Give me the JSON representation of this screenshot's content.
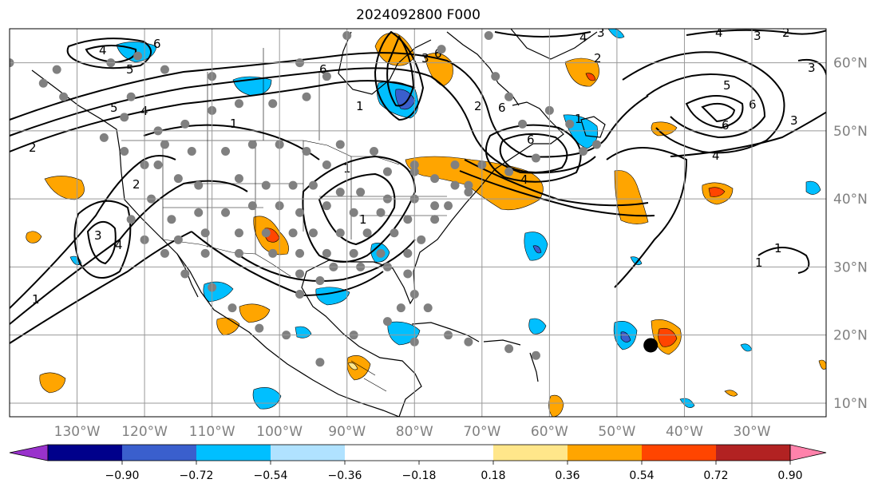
{
  "title": "2024092800 F000",
  "map": {
    "lon_range": [
      -140,
      -19
    ],
    "lat_range": [
      8,
      65
    ],
    "grid_on": true,
    "lon_ticks": [
      {
        "value": -130,
        "label": "130°W"
      },
      {
        "value": -120,
        "label": "120°W"
      },
      {
        "value": -110,
        "label": "110°W"
      },
      {
        "value": -100,
        "label": "100°W"
      },
      {
        "value": -90,
        "label": "90°W"
      },
      {
        "value": -80,
        "label": "80°W"
      },
      {
        "value": -70,
        "label": "70°W"
      },
      {
        "value": -60,
        "label": "60°W"
      },
      {
        "value": -50,
        "label": "50°W"
      },
      {
        "value": -40,
        "label": "40°W"
      },
      {
        "value": -30,
        "label": "30°W"
      }
    ],
    "lat_ticks": [
      {
        "value": 10,
        "label": "10°N"
      },
      {
        "value": 20,
        "label": "20°N"
      },
      {
        "value": 30,
        "label": "30°N"
      },
      {
        "value": 40,
        "label": "40°N"
      },
      {
        "value": 50,
        "label": "50°N"
      },
      {
        "value": 60,
        "label": "60°N"
      }
    ],
    "marker": {
      "lon": -45,
      "lat": 18.5,
      "color": "#000000"
    },
    "stations_color": "#808080",
    "stations": [
      [
        -140,
        60
      ],
      [
        -133,
        59
      ],
      [
        -135,
        57
      ],
      [
        -132,
        55
      ],
      [
        -125,
        60
      ],
      [
        -121,
        61
      ],
      [
        -117,
        59
      ],
      [
        -110,
        58
      ],
      [
        -122,
        55
      ],
      [
        -126,
        49
      ],
      [
        -123,
        47
      ],
      [
        -120,
        45
      ],
      [
        -117,
        48
      ],
      [
        -113,
        47
      ],
      [
        -108,
        47
      ],
      [
        -104,
        48
      ],
      [
        -100,
        48
      ],
      [
        -96,
        47
      ],
      [
        -93,
        45
      ],
      [
        -91,
        48
      ],
      [
        -86,
        47
      ],
      [
        -84,
        44
      ],
      [
        -80,
        44
      ],
      [
        -77,
        43
      ],
      [
        -74,
        42
      ],
      [
        -72,
        42
      ],
      [
        -123,
        52
      ],
      [
        -118,
        50
      ],
      [
        -114,
        51
      ],
      [
        -110,
        53
      ],
      [
        -106,
        54
      ],
      [
        -101,
        54
      ],
      [
        -96,
        55
      ],
      [
        -93,
        58
      ],
      [
        -97,
        60
      ],
      [
        -90,
        64
      ],
      [
        -76,
        62
      ],
      [
        -69,
        64
      ],
      [
        -68,
        58
      ],
      [
        -66,
        55
      ],
      [
        -64,
        51
      ],
      [
        -60,
        53
      ],
      [
        -57,
        51
      ],
      [
        -53,
        48
      ],
      [
        -62,
        46
      ],
      [
        -66,
        44
      ],
      [
        -70,
        45
      ],
      [
        -55,
        47
      ],
      [
        -118,
        45
      ],
      [
        -115,
        43
      ],
      [
        -112,
        42
      ],
      [
        -106,
        43
      ],
      [
        -102,
        42
      ],
      [
        -98,
        42
      ],
      [
        -95,
        42
      ],
      [
        -91,
        41
      ],
      [
        -88,
        41
      ],
      [
        -84,
        40
      ],
      [
        -80,
        40
      ],
      [
        -77,
        39
      ],
      [
        -75,
        39
      ],
      [
        -72,
        41
      ],
      [
        -122,
        37
      ],
      [
        -119,
        40
      ],
      [
        -116,
        37
      ],
      [
        -112,
        38
      ],
      [
        -108,
        38
      ],
      [
        -104,
        39
      ],
      [
        -100,
        39
      ],
      [
        -97,
        38
      ],
      [
        -93,
        39
      ],
      [
        -89,
        38
      ],
      [
        -85,
        38
      ],
      [
        -81,
        37
      ],
      [
        -77,
        37
      ],
      [
        -120,
        34
      ],
      [
        -115,
        34
      ],
      [
        -111,
        35
      ],
      [
        -106,
        35
      ],
      [
        -102,
        35
      ],
      [
        -98,
        35
      ],
      [
        -95,
        35
      ],
      [
        -91,
        35
      ],
      [
        -87,
        35
      ],
      [
        -83,
        35
      ],
      [
        -79,
        34
      ],
      [
        -117,
        32
      ],
      [
        -111,
        32
      ],
      [
        -106,
        32
      ],
      [
        -101,
        32
      ],
      [
        -97,
        32
      ],
      [
        -93,
        32
      ],
      [
        -89,
        32
      ],
      [
        -85,
        32
      ],
      [
        -81,
        32
      ],
      [
        -97,
        29
      ],
      [
        -92,
        30
      ],
      [
        -88,
        30
      ],
      [
        -84,
        30
      ],
      [
        -81,
        29
      ],
      [
        -97,
        26
      ],
      [
        -94,
        28
      ],
      [
        -80,
        26
      ],
      [
        -82,
        24
      ],
      [
        -78,
        24
      ],
      [
        -75,
        20
      ],
      [
        -72,
        19
      ],
      [
        -66,
        18
      ],
      [
        -62,
        17
      ],
      [
        -80,
        19
      ],
      [
        -84,
        22
      ],
      [
        -89,
        20
      ],
      [
        -94,
        16
      ],
      [
        -99,
        20
      ],
      [
        -103,
        21
      ],
      [
        -107,
        24
      ],
      [
        -110,
        27
      ],
      [
        -114,
        29
      ],
      [
        -80,
        45
      ],
      [
        -74,
        45
      ]
    ],
    "colorbar": {
      "colors": [
        "#9932cc",
        "#00008b",
        "#3a5fcd",
        "#00bfff",
        "#b0e2ff",
        "#ffffff",
        "#ffffff",
        "#ffe68a",
        "#ffa500",
        "#ff4500",
        "#b22222",
        "#ff82ab"
      ],
      "labels": [
        "−0.90",
        "−0.72",
        "−0.54",
        "−0.36",
        "−0.18",
        "0.18",
        "0.36",
        "0.54",
        "0.72",
        "0.90"
      ]
    }
  }
}
